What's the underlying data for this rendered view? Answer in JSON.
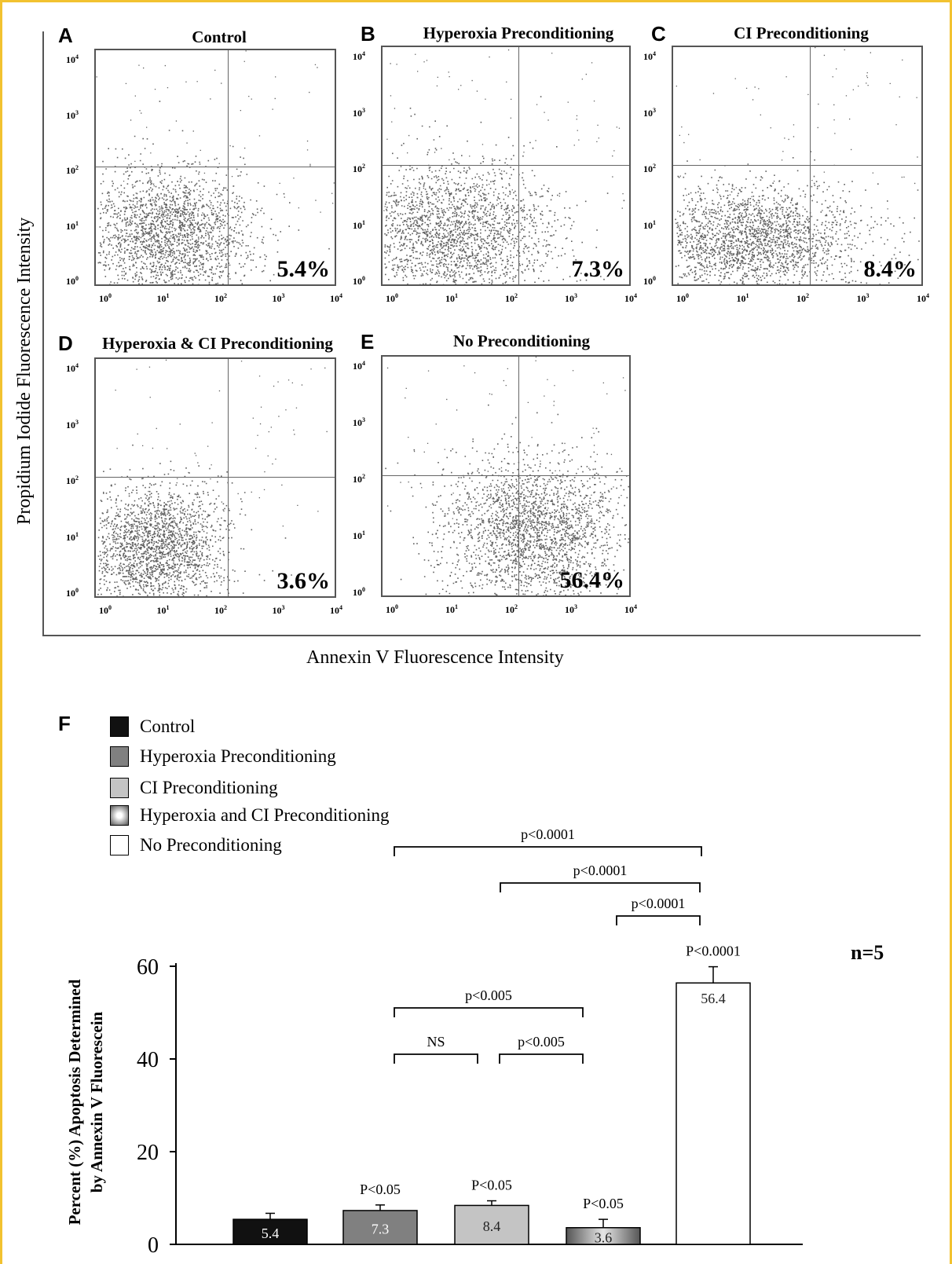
{
  "flow_panels": [
    {
      "letter": "A",
      "title": "Control",
      "percent": "5.4%"
    },
    {
      "letter": "B",
      "title": "Hyperoxia Preconditioning",
      "percent": "7.3%"
    },
    {
      "letter": "C",
      "title": "CI Preconditioning",
      "percent": "8.4%"
    },
    {
      "letter": "D",
      "title": "Hyperoxia & CI Preconditioning",
      "percent": "3.6%"
    },
    {
      "letter": "E",
      "title": "No Preconditioning",
      "percent": "56.4%"
    }
  ],
  "flow_axes": {
    "ylabel": "Propidium Iodide Fluorescence Intensity",
    "xlabel": "Annexin V Fluorescence Intensity",
    "tick_base": "10",
    "tick_exponents": [
      "0",
      "1",
      "2",
      "3",
      "4"
    ]
  },
  "bar_panel": {
    "letter": "F",
    "n_label": "n=5",
    "ylabel_line1": "Percent (%) Apoptosis Determined",
    "ylabel_line2": "by Annexin V Fluorescein"
  },
  "chart_data": {
    "type": "bar",
    "categories": [
      "Control",
      "Hyperoxia Preconditioning",
      "CI Preconditioning",
      "Hyperoxia and CI Preconditioning",
      "No Preconditioning"
    ],
    "values": [
      5.4,
      7.3,
      8.4,
      3.6,
      56.4
    ],
    "errors": [
      1.3,
      1.2,
      1.0,
      1.8,
      3.5
    ],
    "value_labels": [
      "5.4",
      "7.3",
      "8.4",
      "3.6",
      "56.4"
    ],
    "bar_annotations": [
      "",
      "P<0.05",
      "P<0.05",
      "P<0.05",
      "P<0.0001"
    ],
    "colors": [
      "#111111",
      "#808080",
      "#c4c4c4",
      "#9a9a9a",
      "#ffffff"
    ],
    "ylim": [
      0,
      60
    ],
    "yticks": [
      0,
      20,
      40,
      60
    ],
    "comparisons": [
      {
        "from": 1,
        "to": 4,
        "label": "p<0.0001"
      },
      {
        "from": 2,
        "to": 4,
        "label": "p<0.0001"
      },
      {
        "from": 3,
        "to": 4,
        "label": "p<0.0001"
      },
      {
        "from": 1,
        "to": 3,
        "label": "p<0.005"
      },
      {
        "from": 1,
        "to": 2,
        "label": "NS"
      },
      {
        "from": 2,
        "to": 3,
        "label": "p<0.005"
      }
    ]
  }
}
